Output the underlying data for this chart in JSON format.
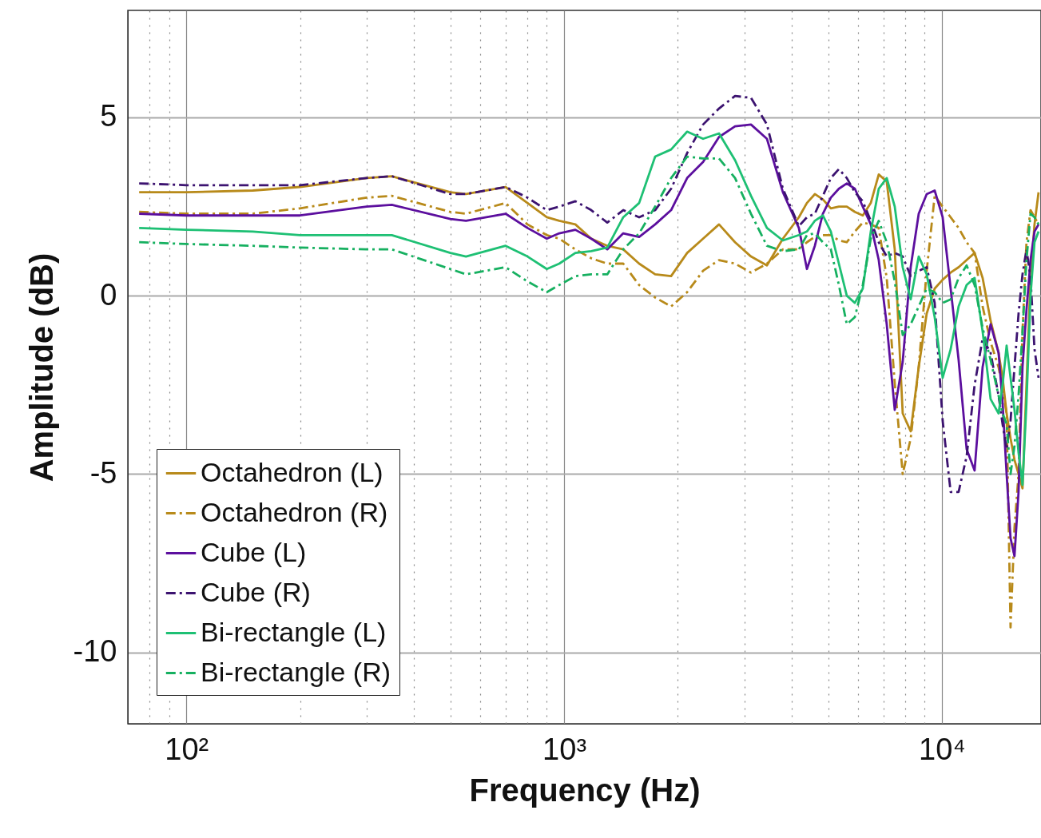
{
  "chart_data": {
    "type": "line",
    "xlabel": "Frequency (Hz)",
    "ylabel": "Amplitude (dB)",
    "log": "x",
    "grid": true,
    "legend": "bottom left",
    "xlim": [
      70,
      18300
    ],
    "ylim": [
      -12,
      8
    ],
    "yticks": [
      -10,
      -5,
      0,
      5
    ],
    "xticks": [
      {
        "value": 80,
        "label": null
      },
      {
        "value": 90,
        "label": null
      },
      {
        "value": 100,
        "label": "10²"
      },
      {
        "value": 200,
        "label": null
      },
      {
        "value": 300,
        "label": null
      },
      {
        "value": 400,
        "label": null
      },
      {
        "value": 500,
        "label": null
      },
      {
        "value": 600,
        "label": null
      },
      {
        "value": 700,
        "label": null
      },
      {
        "value": 800,
        "label": null
      },
      {
        "value": 900,
        "label": null
      },
      {
        "value": 1000,
        "label": "10³"
      },
      {
        "value": 2000,
        "label": null
      },
      {
        "value": 3000,
        "label": null
      },
      {
        "value": 4000,
        "label": null
      },
      {
        "value": 5000,
        "label": null
      },
      {
        "value": 6000,
        "label": null
      },
      {
        "value": 7000,
        "label": null
      },
      {
        "value": 8000,
        "label": null
      },
      {
        "value": 9000,
        "label": null
      },
      {
        "value": 10000,
        "label": "10⁴"
      }
    ],
    "x": [
      75,
      100,
      150,
      200,
      300,
      350,
      500,
      550,
      700,
      800,
      900,
      971,
      1071,
      1180,
      1301,
      1434,
      1580,
      1742,
      1920,
      2117,
      2333,
      2571,
      2835,
      3124,
      3443,
      3795,
      4183,
      4393,
      4611,
      4842,
      5083,
      5338,
      5602,
      5884,
      6175,
      6484,
      6807,
      7146,
      7504,
      7877,
      8270,
      8685,
      9118,
      9572,
      10049,
      10551,
      11076,
      11630,
      12210,
      12820,
      13460,
      14130,
      14480,
      14840,
      15200,
      15570,
      15960,
      16350,
      16750,
      17170,
      17590,
      18030
    ],
    "series": [
      {
        "name": "Octahedron (L)",
        "color": "#b88a1a",
        "line_style": "solid",
        "values": [
          2.9,
          2.9,
          2.95,
          3.05,
          3.3,
          3.35,
          2.9,
          2.85,
          3.05,
          2.6,
          2.2,
          2.1,
          2.0,
          1.6,
          1.4,
          1.3,
          0.9,
          0.6,
          0.55,
          1.2,
          1.6,
          2.0,
          1.5,
          1.1,
          0.85,
          1.6,
          2.2,
          2.6,
          2.85,
          2.7,
          2.45,
          2.5,
          2.5,
          2.35,
          2.25,
          2.6,
          3.4,
          3.2,
          1.3,
          -3.3,
          -3.8,
          -2.0,
          -0.5,
          0.2,
          0.45,
          0.65,
          0.8,
          1.0,
          1.2,
          0.5,
          -0.7,
          -1.6,
          -2.3,
          -3.3,
          -4.0,
          -4.6,
          -5.0,
          -5.4,
          -2.5,
          0.5,
          2.0,
          2.9
        ]
      },
      {
        "name": "Octahedron (R)",
        "color": "#b88a1a",
        "line_style": "dashed",
        "values": [
          2.35,
          2.3,
          2.3,
          2.45,
          2.75,
          2.8,
          2.35,
          2.3,
          2.6,
          2.0,
          1.7,
          1.6,
          1.3,
          1.05,
          0.9,
          0.9,
          0.3,
          -0.05,
          -0.3,
          0.1,
          0.7,
          1.0,
          0.9,
          0.65,
          0.9,
          1.3,
          1.3,
          1.5,
          1.65,
          1.7,
          1.7,
          1.55,
          1.5,
          1.8,
          2.05,
          2.0,
          1.9,
          0.5,
          -2.45,
          -5.0,
          -4.0,
          -2.0,
          0.7,
          2.8,
          2.5,
          2.2,
          1.9,
          1.5,
          1.2,
          -0.3,
          -1.3,
          -2.0,
          -2.6,
          -3.3,
          -9.3,
          -6.5,
          -5.0,
          -1.0,
          1.5,
          2.4,
          2.2,
          2.0
        ]
      },
      {
        "name": "Cube (L)",
        "color": "#5c0f9e",
        "line_style": "solid",
        "values": [
          2.3,
          2.25,
          2.25,
          2.25,
          2.5,
          2.55,
          2.15,
          2.1,
          2.3,
          1.9,
          1.6,
          1.75,
          1.85,
          1.6,
          1.3,
          1.75,
          1.65,
          2.0,
          2.4,
          3.3,
          3.75,
          4.45,
          4.75,
          4.8,
          4.4,
          2.9,
          1.9,
          0.75,
          1.4,
          2.3,
          2.75,
          3.0,
          3.15,
          3.0,
          2.5,
          2.0,
          1.0,
          -0.8,
          -3.2,
          -1.85,
          0.8,
          2.3,
          2.85,
          2.95,
          2.2,
          0.2,
          -1.8,
          -4.3,
          -4.9,
          -2.0,
          -0.8,
          -1.6,
          -3.0,
          -5.0,
          -6.8,
          -7.3,
          -5.5,
          -2.0,
          -0.4,
          1.0,
          1.8,
          2.0
        ]
      },
      {
        "name": "Cube (R)",
        "color": "#3c1370",
        "line_style": "dashed",
        "values": [
          3.15,
          3.1,
          3.1,
          3.1,
          3.3,
          3.35,
          2.85,
          2.85,
          3.05,
          2.75,
          2.4,
          2.5,
          2.65,
          2.4,
          2.05,
          2.4,
          2.2,
          2.4,
          3.0,
          4.0,
          4.8,
          5.25,
          5.6,
          5.55,
          4.8,
          3.0,
          1.95,
          2.2,
          2.3,
          2.8,
          3.3,
          3.55,
          3.3,
          2.9,
          2.65,
          2.1,
          1.5,
          1.1,
          1.2,
          1.1,
          0.55,
          0.7,
          0.8,
          -0.2,
          -3.5,
          -5.5,
          -5.5,
          -4.5,
          -2.5,
          -1.2,
          -1.6,
          -2.8,
          -3.6,
          -4.3,
          -3.5,
          -2.0,
          -0.5,
          0.6,
          1.3,
          0.5,
          -1.5,
          -2.3
        ]
      },
      {
        "name": "Bi-rectangle (L)",
        "color": "#1ec074",
        "line_style": "solid",
        "values": [
          1.9,
          1.85,
          1.8,
          1.7,
          1.7,
          1.7,
          1.2,
          1.1,
          1.4,
          1.1,
          0.75,
          0.9,
          1.2,
          1.25,
          1.35,
          2.2,
          2.6,
          3.9,
          4.1,
          4.6,
          4.4,
          4.55,
          3.8,
          2.8,
          1.9,
          1.55,
          1.7,
          1.8,
          2.1,
          2.25,
          1.8,
          0.9,
          0.0,
          -0.2,
          0.2,
          1.8,
          3.0,
          3.3,
          2.5,
          0.8,
          -0.1,
          1.1,
          0.6,
          -0.6,
          -2.3,
          -1.5,
          -0.3,
          0.3,
          0.5,
          -1.0,
          -2.9,
          -3.3,
          -2.5,
          -1.4,
          -2.3,
          -3.2,
          -4.4,
          -5.3,
          -3.0,
          0.0,
          1.5,
          1.8
        ]
      },
      {
        "name": "Bi-rectangle (R)",
        "color": "#16b060",
        "line_style": "dashed",
        "values": [
          1.5,
          1.45,
          1.4,
          1.35,
          1.3,
          1.3,
          0.75,
          0.6,
          0.8,
          0.4,
          0.1,
          0.3,
          0.55,
          0.6,
          0.6,
          1.3,
          1.75,
          2.5,
          3.3,
          3.9,
          3.85,
          3.85,
          3.3,
          2.3,
          1.4,
          1.25,
          1.3,
          1.7,
          1.75,
          1.5,
          1.3,
          0.3,
          -0.8,
          -0.6,
          0.3,
          1.6,
          2.1,
          1.5,
          0.4,
          -1.1,
          -0.8,
          -0.3,
          0.2,
          0.1,
          -0.2,
          -0.1,
          0.5,
          0.85,
          0.3,
          -0.9,
          -1.8,
          -2.8,
          -3.3,
          -3.6,
          -5.0,
          -4.2,
          -2.8,
          -1.0,
          1.0,
          2.3,
          2.2,
          2.0
        ]
      }
    ]
  }
}
